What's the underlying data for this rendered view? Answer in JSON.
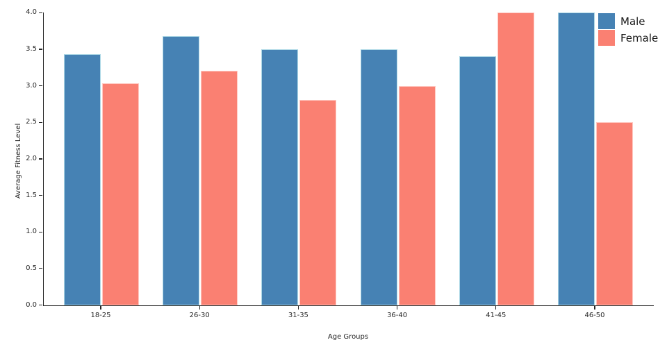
{
  "chart_data": {
    "type": "bar",
    "title": "",
    "categories": [
      "18-25",
      "26-30",
      "31-35",
      "36-40",
      "41-45",
      "46-50"
    ],
    "series": [
      {
        "name": "Male",
        "color": "#4682B4",
        "edge_color": "#ADD8E6",
        "values": [
          3.43,
          3.68,
          3.5,
          3.5,
          3.4,
          4.0
        ]
      },
      {
        "name": "Female",
        "color": "#FA8072",
        "edge_color": "#FFC9C2",
        "values": [
          3.03,
          3.21,
          2.81,
          3.0,
          4.0,
          2.5
        ]
      }
    ],
    "xlabel": "Age Groups",
    "ylabel": "Average Fitness Level",
    "ylim": [
      0.0,
      4.0
    ],
    "yticks": [
      0.0,
      0.5,
      1.0,
      1.5,
      2.0,
      2.5,
      3.0,
      3.5,
      4.0
    ],
    "ytick_labels": [
      "0.0",
      "0.5",
      "1.0",
      "1.5",
      "2.0",
      "2.5",
      "3.0",
      "3.5",
      "4.0"
    ],
    "grid": false,
    "legend_position": "upper right",
    "axis_color": "#262626",
    "background_color": "#ffffff"
  }
}
